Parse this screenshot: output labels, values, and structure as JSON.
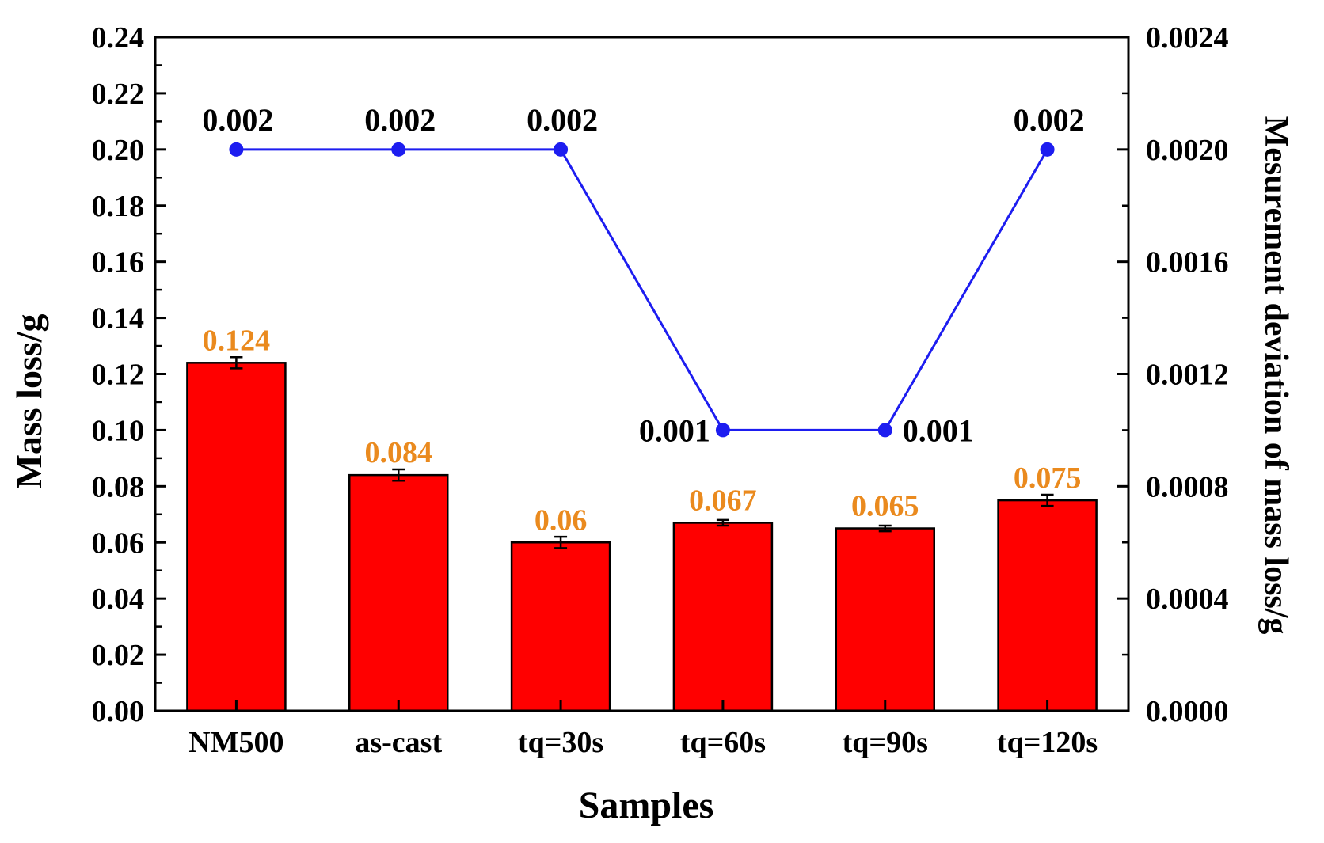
{
  "chart_data": {
    "type": "bar",
    "title": "",
    "xlabel": "Samples",
    "ylabel": "Mass loss/g",
    "y2label": "Mesurement deviation of mass loss/g",
    "categories": [
      "NM500",
      "as-cast",
      "tq=30s",
      "tq=60s",
      "tq=90s",
      "tq=120s"
    ],
    "ylim": [
      0,
      0.24
    ],
    "y2lim": [
      0,
      0.0024
    ],
    "yticks": [
      0.0,
      0.02,
      0.04,
      0.06,
      0.08,
      0.1,
      0.12,
      0.14,
      0.16,
      0.18,
      0.2,
      0.22,
      0.24
    ],
    "ytick_labels": [
      "0.00",
      "0.02",
      "0.04",
      "0.06",
      "0.08",
      "0.10",
      "0.12",
      "0.14",
      "0.16",
      "0.18",
      "0.20",
      "0.22",
      "0.24"
    ],
    "y2ticks": [
      0.0,
      0.0004,
      0.0008,
      0.0012,
      0.0016,
      0.002,
      0.0024
    ],
    "y2tick_labels": [
      "0.0000",
      "0.0004",
      "0.0008",
      "0.0012",
      "0.0016",
      "0.0020",
      "0.0024"
    ],
    "grid": false,
    "series": [
      {
        "name": "Mass loss",
        "type": "bar",
        "axis": "left",
        "color": "#ff0000",
        "values": [
          0.124,
          0.084,
          0.06,
          0.067,
          0.065,
          0.075
        ],
        "errors": [
          0.002,
          0.002,
          0.002,
          0.001,
          0.001,
          0.002
        ],
        "labels": [
          "0.124",
          "0.084",
          "0.06",
          "0.067",
          "0.065",
          "0.075"
        ],
        "label_color": "#ea8a1e"
      },
      {
        "name": "Mesurement deviation",
        "type": "line",
        "axis": "right",
        "color": "#1d1df0",
        "values": [
          0.002,
          0.002,
          0.002,
          0.001,
          0.001,
          0.002
        ],
        "labels": [
          "0.002",
          "0.002",
          "0.002",
          "0.001",
          "0.001",
          "0.002"
        ],
        "label_color": "#000000"
      }
    ]
  }
}
